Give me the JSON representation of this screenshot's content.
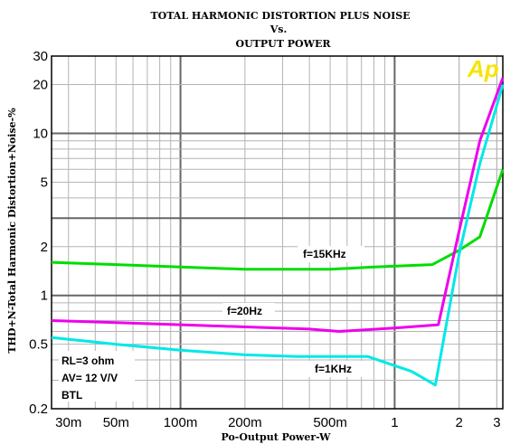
{
  "chart_data": {
    "type": "line",
    "title": [
      "TOTAL HARMONIC DISTORTION PLUS NOISE",
      "Vs.",
      "OUTPUT POWER"
    ],
    "xlabel": "Po-Output Power-W",
    "ylabel": "THD+N-Total Harmonic Distortion+Noise-%",
    "xscale": "log",
    "yscale": "log",
    "xlim": [
      0.025,
      3.2
    ],
    "ylim": [
      0.2,
      30
    ],
    "x_ticks": [
      0.03,
      0.05,
      0.1,
      0.2,
      0.5,
      1,
      2,
      3
    ],
    "x_tick_labels": [
      "30m",
      "50m",
      "100m",
      "200m",
      "500m",
      "1",
      "2",
      "3"
    ],
    "y_ticks": [
      0.2,
      0.5,
      1,
      2,
      5,
      10,
      20,
      30
    ],
    "y_tick_labels": [
      "0.2",
      "0.5",
      "1",
      "2",
      "5",
      "10",
      "20",
      "30"
    ],
    "grid": true,
    "legend": "none",
    "logo": "Ap",
    "conditions": [
      "RL=3 ohm",
      "AV= 12 V/V",
      "BTL"
    ],
    "series": [
      {
        "name": "f=15KHz",
        "color": "#00dd00",
        "x": [
          0.025,
          0.05,
          0.1,
          0.2,
          0.5,
          0.8,
          1.5,
          2.0,
          2.5,
          3.2
        ],
        "y": [
          1.6,
          1.55,
          1.5,
          1.45,
          1.45,
          1.5,
          1.55,
          1.9,
          2.3,
          6.0
        ]
      },
      {
        "name": "f=20Hz",
        "color": "#ee00ee",
        "x": [
          0.025,
          0.05,
          0.1,
          0.2,
          0.4,
          0.55,
          1.0,
          1.6,
          2.0,
          2.5,
          3.2
        ],
        "y": [
          0.7,
          0.68,
          0.66,
          0.64,
          0.62,
          0.6,
          0.63,
          0.66,
          2.5,
          9.0,
          22.0
        ]
      },
      {
        "name": "f=1KHz",
        "color": "#00e8e8",
        "x": [
          0.025,
          0.05,
          0.1,
          0.2,
          0.35,
          0.75,
          1.2,
          1.55,
          2.0,
          2.5,
          3.2
        ],
        "y": [
          0.55,
          0.5,
          0.46,
          0.43,
          0.42,
          0.42,
          0.34,
          0.28,
          1.8,
          6.5,
          20.0
        ]
      }
    ]
  }
}
